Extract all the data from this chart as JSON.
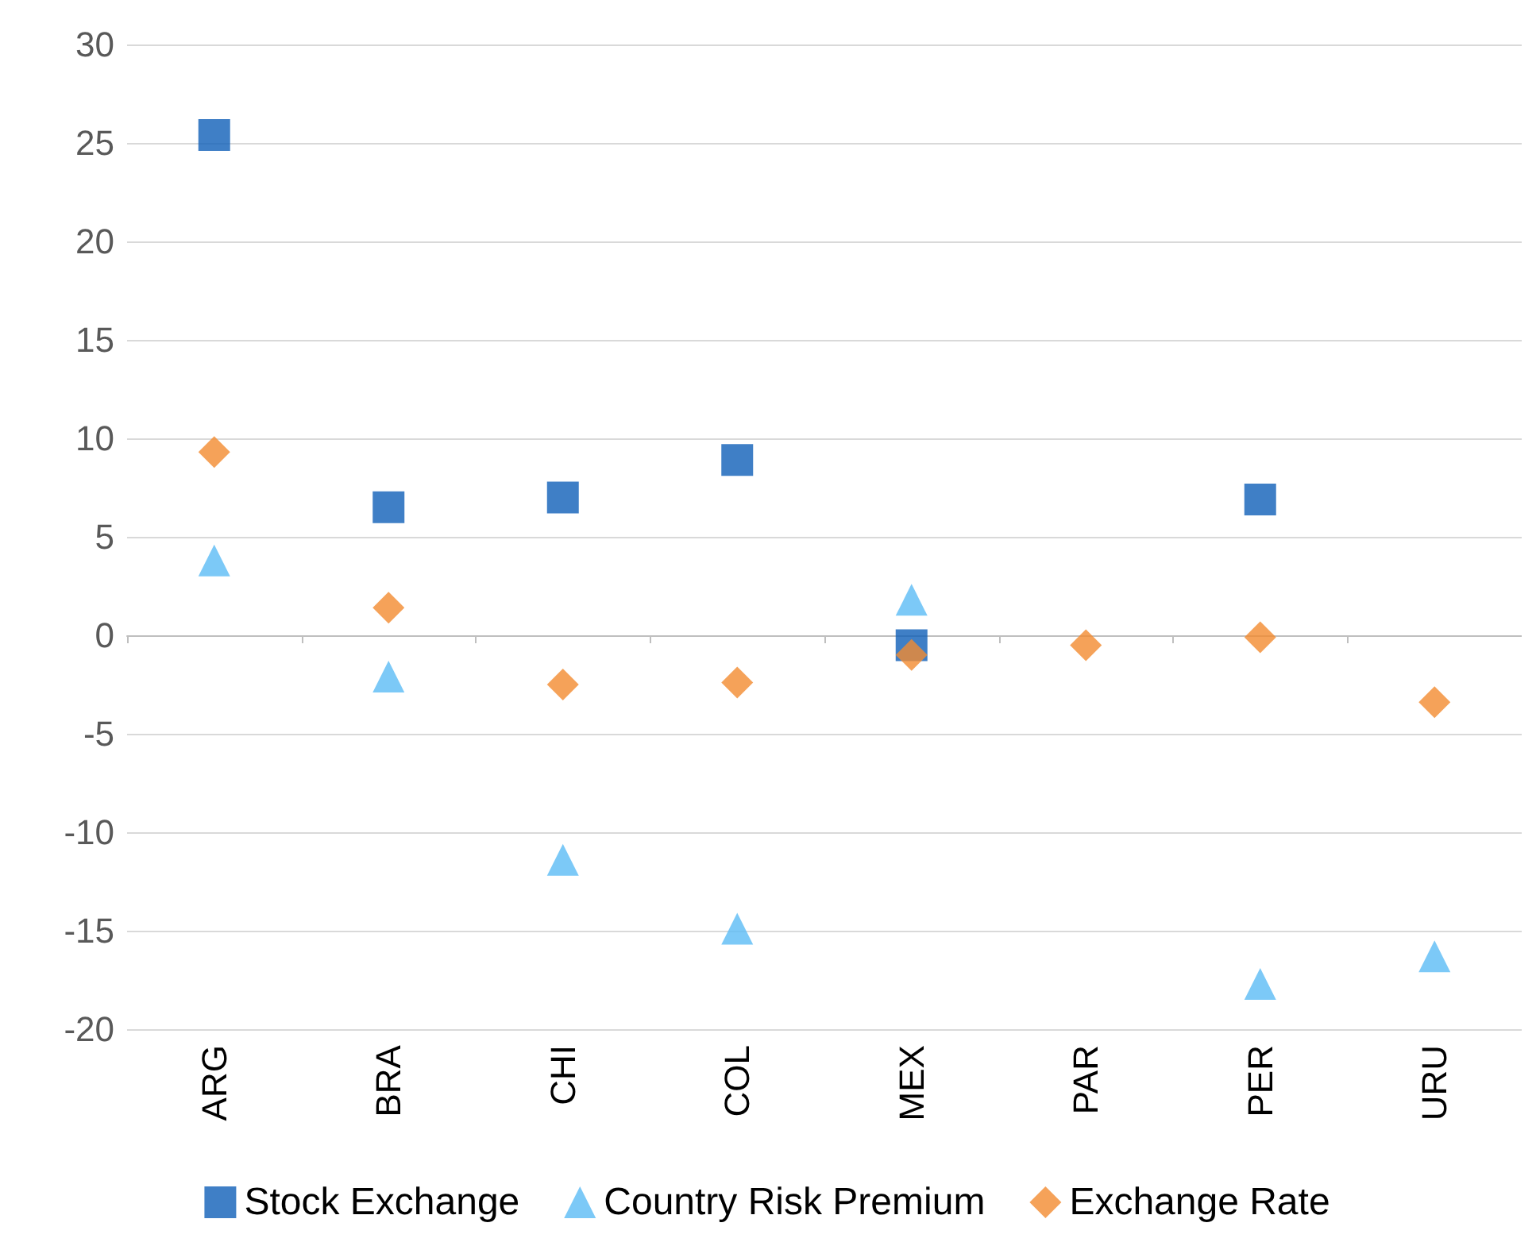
{
  "chart_data": {
    "type": "scatter",
    "categories": [
      "ARG",
      "BRA",
      "CHI",
      "COL",
      "MEX",
      "PAR",
      "PER",
      "URU"
    ],
    "series": [
      {
        "name": "Stock Exchange",
        "color": "#0f5fb8",
        "marker": "square",
        "values": [
          25.4,
          6.5,
          7.0,
          8.9,
          -0.5,
          null,
          6.9,
          null
        ]
      },
      {
        "name": "Country Risk Premium",
        "color": "#5bbcf5",
        "marker": "triangle",
        "values": [
          3.8,
          -2.1,
          -11.4,
          -14.9,
          1.8,
          null,
          -17.7,
          -16.3
        ]
      },
      {
        "name": "Exchange Rate",
        "color": "#f28b30",
        "marker": "diamond",
        "values": [
          9.3,
          1.4,
          -2.5,
          -2.4,
          -1.0,
          -0.5,
          -0.1,
          -3.4
        ]
      }
    ],
    "ylim": [
      -20,
      30
    ],
    "yticks": [
      -20,
      -15,
      -10,
      -5,
      0,
      5,
      10,
      15,
      20,
      25,
      30
    ],
    "grid": "y",
    "legend": "bottom"
  }
}
